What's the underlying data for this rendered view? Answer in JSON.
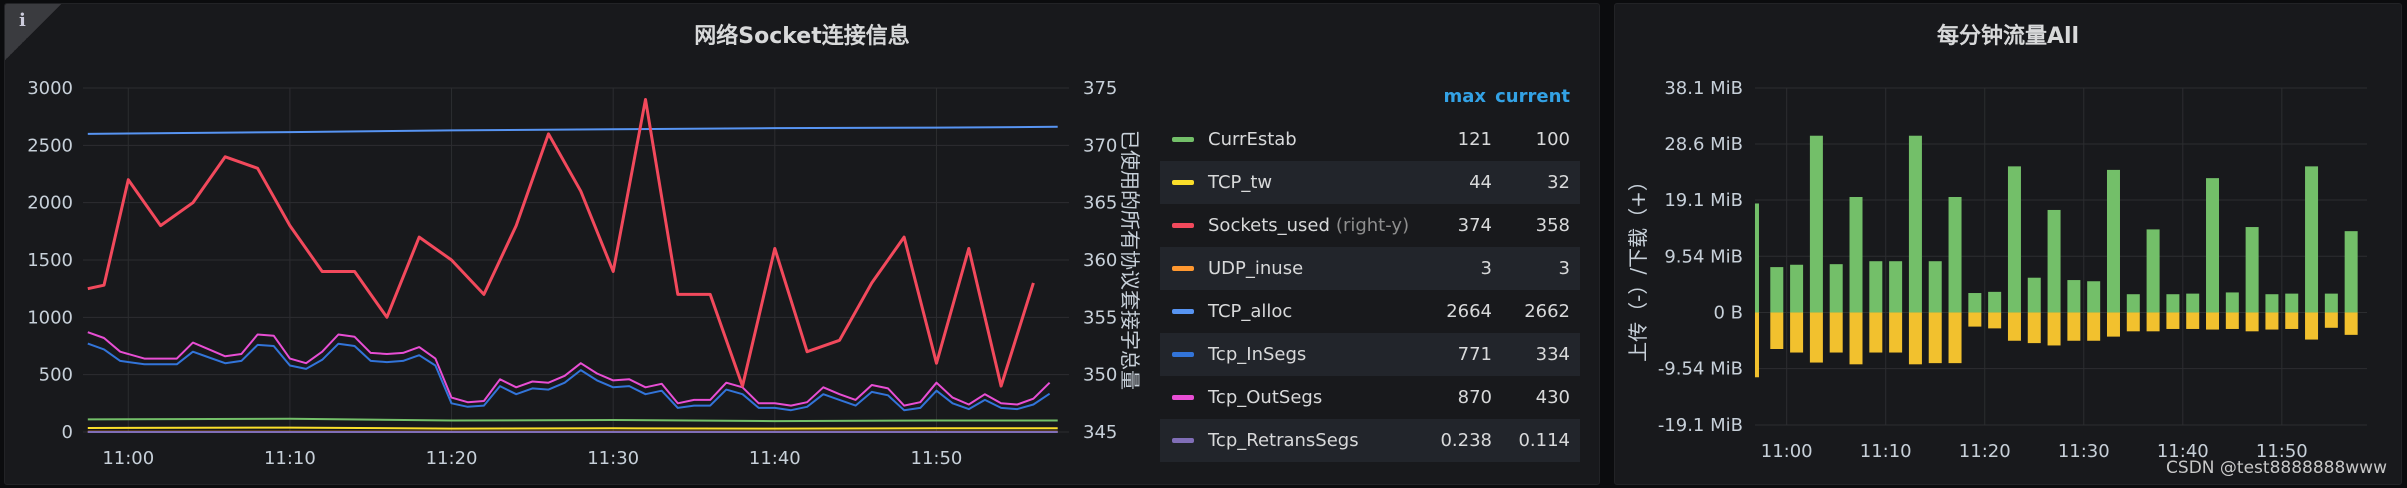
{
  "left_panel": {
    "title": "网络Socket连接信息",
    "info_icon": "i",
    "y_right_label": "已使用的所有协议套接字总量",
    "legend": {
      "col_max": "max",
      "col_current": "current",
      "items": [
        {
          "name": "CurrEstab",
          "note": "",
          "max": "121",
          "current": "100",
          "color": "#73bf69"
        },
        {
          "name": "TCP_tw",
          "note": "",
          "max": "44",
          "current": "32",
          "color": "#fade2a"
        },
        {
          "name": "Sockets_used",
          "note": "(right-y)",
          "max": "374",
          "current": "358",
          "color": "#f2495c"
        },
        {
          "name": "UDP_inuse",
          "note": "",
          "max": "3",
          "current": "3",
          "color": "#ff9830"
        },
        {
          "name": "TCP_alloc",
          "note": "",
          "max": "2664",
          "current": "2662",
          "color": "#5794f2"
        },
        {
          "name": "Tcp_InSegs",
          "note": "",
          "max": "771",
          "current": "334",
          "color": "#3274d9"
        },
        {
          "name": "Tcp_OutSegs",
          "note": "",
          "max": "870",
          "current": "430",
          "color": "#e84ed4"
        },
        {
          "name": "Tcp_RetransSegs",
          "note": "",
          "max": "0.238",
          "current": "0.114",
          "color": "#806eb7"
        }
      ]
    }
  },
  "right_panel": {
    "title": "每分钟流量All",
    "y_label": "上传（-）/下载（+）",
    "watermark": "CSDN @test8888888www"
  },
  "chart_data": [
    {
      "type": "line",
      "title": "网络Socket连接信息",
      "x_ticks": [
        "11:00",
        "11:10",
        "11:20",
        "11:30",
        "11:40",
        "11:50"
      ],
      "x_range_minutes": [
        -2.8,
        58.2
      ],
      "y_left": {
        "ticks": [
          "0",
          "500",
          "1000",
          "1500",
          "2000",
          "2500",
          "3000"
        ],
        "range": [
          0,
          3000
        ]
      },
      "y_right": {
        "label": "已使用的所有协议套接字总量",
        "ticks": [
          "345",
          "350",
          "355",
          "360",
          "365",
          "370",
          "375"
        ],
        "range": [
          345,
          375
        ]
      },
      "series": [
        {
          "name": "TCP_alloc",
          "axis": "left",
          "color": "#5794f2",
          "x": [
            -2.5,
            10,
            20,
            30,
            40,
            50,
            57.5
          ],
          "values": [
            2600,
            2615,
            2630,
            2640,
            2650,
            2655,
            2662
          ]
        },
        {
          "name": "Sockets_used",
          "axis": "right",
          "color": "#f2495c",
          "x": [
            -2.5,
            -1.5,
            0,
            2,
            4,
            6,
            8,
            10,
            12,
            14,
            16,
            18,
            20,
            22,
            24,
            26,
            28,
            30,
            32,
            34,
            36,
            38,
            40,
            42,
            44,
            46,
            48,
            50,
            52,
            54,
            56
          ],
          "values": [
            357.5,
            357.8,
            367,
            363,
            365,
            369,
            368,
            363,
            359,
            359,
            355,
            362,
            360,
            357,
            363,
            371,
            366,
            359,
            374,
            357,
            357,
            349,
            361,
            352,
            353,
            358,
            362,
            351,
            361,
            349,
            358
          ]
        },
        {
          "name": "Tcp_OutSegs",
          "axis": "left",
          "color": "#e84ed4",
          "x": [
            -2.5,
            -1.5,
            -0.5,
            1,
            2,
            3,
            4,
            5,
            6,
            7,
            8,
            9,
            10,
            11,
            12,
            13,
            14,
            15,
            16,
            17,
            18,
            19,
            20,
            21,
            22,
            23,
            24,
            25,
            26,
            27,
            28,
            29,
            30,
            31,
            32,
            33,
            34,
            35,
            36,
            37,
            38,
            39,
            40,
            41,
            42,
            43,
            44,
            45,
            46,
            47,
            48,
            49,
            50,
            51,
            52,
            53,
            54,
            55,
            56,
            57
          ],
          "values": [
            870,
            820,
            700,
            640,
            640,
            640,
            780,
            720,
            660,
            680,
            850,
            840,
            640,
            600,
            700,
            850,
            830,
            690,
            680,
            690,
            740,
            640,
            300,
            260,
            270,
            460,
            390,
            440,
            430,
            490,
            600,
            510,
            450,
            460,
            390,
            420,
            250,
            280,
            280,
            430,
            390,
            250,
            250,
            230,
            260,
            390,
            330,
            280,
            410,
            380,
            230,
            260,
            430,
            300,
            240,
            330,
            250,
            240,
            290,
            430
          ]
        },
        {
          "name": "Tcp_InSegs",
          "axis": "left",
          "color": "#3274d9",
          "x": [
            -2.5,
            -1.5,
            -0.5,
            1,
            2,
            3,
            4,
            5,
            6,
            7,
            8,
            9,
            10,
            11,
            12,
            13,
            14,
            15,
            16,
            17,
            18,
            19,
            20,
            21,
            22,
            23,
            24,
            25,
            26,
            27,
            28,
            29,
            30,
            31,
            32,
            33,
            34,
            35,
            36,
            37,
            38,
            39,
            40,
            41,
            42,
            43,
            44,
            45,
            46,
            47,
            48,
            49,
            50,
            51,
            52,
            53,
            54,
            55,
            56,
            57
          ],
          "values": [
            771,
            720,
            620,
            590,
            590,
            590,
            700,
            650,
            600,
            620,
            760,
            750,
            580,
            550,
            630,
            770,
            750,
            620,
            610,
            620,
            670,
            580,
            250,
            220,
            230,
            400,
            330,
            380,
            370,
            430,
            540,
            450,
            390,
            400,
            330,
            360,
            210,
            230,
            230,
            370,
            330,
            210,
            210,
            190,
            220,
            330,
            280,
            230,
            350,
            320,
            190,
            210,
            360,
            250,
            200,
            280,
            210,
            200,
            240,
            334
          ]
        },
        {
          "name": "CurrEstab",
          "axis": "left",
          "color": "#73bf69",
          "x": [
            -2.5,
            10,
            20,
            30,
            40,
            50,
            57.5
          ],
          "values": [
            110,
            115,
            100,
            105,
            95,
            100,
            100
          ]
        },
        {
          "name": "TCP_tw",
          "axis": "left",
          "color": "#fade2a",
          "x": [
            -2.5,
            10,
            20,
            30,
            40,
            50,
            57.5
          ],
          "values": [
            35,
            38,
            30,
            32,
            30,
            33,
            32
          ]
        },
        {
          "name": "UDP_inuse",
          "axis": "left",
          "color": "#ff9830",
          "x": [
            -2.5,
            57.5
          ],
          "values": [
            3,
            3
          ]
        },
        {
          "name": "Tcp_RetransSegs",
          "axis": "left",
          "color": "#806eb7",
          "x": [
            -2.5,
            57.5
          ],
          "values": [
            0.2,
            0.1
          ]
        }
      ]
    },
    {
      "type": "bar",
      "title": "每分钟流量All",
      "ylabel": "上传（-）/下载（+）",
      "x_ticks": [
        "11:00",
        "11:10",
        "11:20",
        "11:30",
        "11:40",
        "11:50"
      ],
      "x_range_minutes": [
        -3.2,
        58.6
      ],
      "y_ticks": [
        "38.1 MiB",
        "28.6 MiB",
        "19.1 MiB",
        "9.54 MiB",
        "0 B",
        "-9.54 MiB",
        "-19.1 MiB"
      ],
      "ylim_mib": [
        -19.1,
        38.1
      ],
      "x_minutes": [
        -3,
        -1,
        1,
        3,
        5,
        7,
        9,
        11,
        13,
        15,
        17,
        19,
        21,
        23,
        25,
        27,
        29,
        31,
        33,
        35,
        37,
        39,
        41,
        43,
        45,
        47,
        49,
        51,
        53,
        55,
        57
      ],
      "download_mib": [
        18.5,
        7.7,
        8.1,
        30,
        8.2,
        19.6,
        8.7,
        8.7,
        30,
        8.7,
        19.6,
        3.3,
        3.5,
        24.8,
        5.9,
        17.4,
        5.5,
        5.3,
        24.2,
        3.1,
        14.1,
        3.1,
        3.2,
        22.8,
        3.4,
        14.5,
        3.1,
        3.2,
        24.8,
        3.2,
        13.8
      ],
      "upload_mib": [
        -11,
        -6.2,
        -6.8,
        -8.5,
        -6.8,
        -8.8,
        -6.8,
        -6.8,
        -8.8,
        -8.6,
        -8.6,
        -2.4,
        -2.7,
        -4.8,
        -5.2,
        -5.6,
        -4.8,
        -4.8,
        -4.1,
        -3.2,
        -3.2,
        -2.8,
        -2.8,
        -2.9,
        -2.8,
        -3.2,
        -2.9,
        -2.8,
        -4.6,
        -2.6,
        -3.8
      ]
    }
  ]
}
